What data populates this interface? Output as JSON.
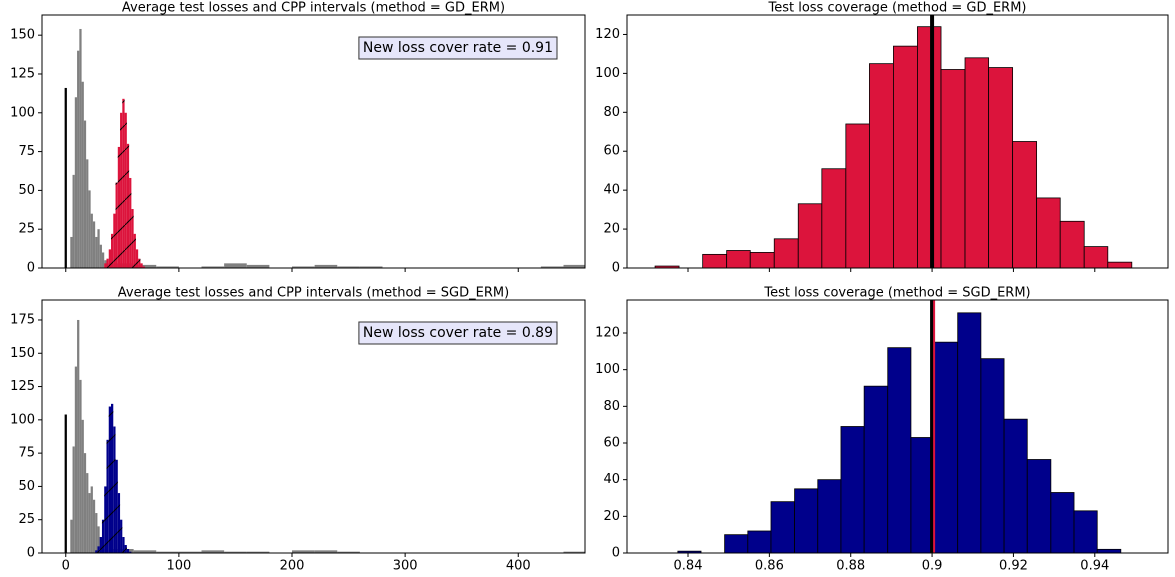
{
  "chart_data": [
    {
      "type": "histogram",
      "title": "Average test losses and CPP intervals (method = GD_ERM)",
      "xlim": [
        -21,
        459
      ],
      "ylim": [
        0,
        163
      ],
      "xticks": [
        0,
        100,
        200,
        300,
        400
      ],
      "yticks": [
        0,
        25,
        50,
        75,
        100,
        125,
        150
      ],
      "show_xtick_labels": false,
      "annotation": "New loss cover rate = 0.91",
      "series": [
        {
          "color": "#000000",
          "bins": [
            -1,
            1
          ],
          "counts": [
            116
          ]
        },
        {
          "color": "#808080",
          "bins": [
            4,
            6,
            8,
            10,
            12,
            14,
            16,
            18,
            20,
            22,
            24,
            26,
            28,
            30,
            32,
            34,
            36,
            38
          ],
          "counts": [
            20,
            60,
            110,
            140,
            154,
            120,
            95,
            70,
            50,
            35,
            30,
            20,
            25,
            15,
            10,
            5,
            3
          ]
        },
        {
          "color": "#808080",
          "bins": [
            40,
            60,
            80,
            100,
            120,
            140,
            160,
            180,
            200,
            220,
            240,
            260,
            280,
            300,
            320,
            340,
            360,
            380,
            400,
            420,
            440,
            460
          ],
          "counts": [
            3,
            2,
            1,
            0,
            1,
            3,
            2,
            0,
            1,
            2,
            1,
            1,
            0,
            0,
            0,
            0,
            0,
            0,
            0,
            1,
            2
          ]
        },
        {
          "color": "#dc143c",
          "hatch": "/",
          "bins": [
            34,
            36,
            38,
            40,
            42,
            44,
            46,
            48,
            50,
            52,
            54,
            56,
            58,
            60,
            62,
            64,
            66,
            68,
            70
          ],
          "counts": [
            3,
            6,
            12,
            22,
            35,
            55,
            78,
            100,
            109,
            100,
            80,
            58,
            38,
            22,
            12,
            6,
            3,
            1
          ]
        }
      ]
    },
    {
      "type": "histogram",
      "title": "Test loss coverage (method = GD_ERM)",
      "xlim": [
        0.825,
        0.958
      ],
      "ylim": [
        0,
        130
      ],
      "xticks": [
        0.84,
        0.86,
        0.88,
        0.9,
        0.92,
        0.94
      ],
      "yticks": [
        0,
        20,
        40,
        60,
        80,
        100,
        120
      ],
      "show_xtick_labels": false,
      "edgecolor": "#000000",
      "series": [
        {
          "color": "#dc143c",
          "bins": [
            0.8319,
            0.8378,
            0.8436,
            0.8495,
            0.8553,
            0.8612,
            0.8671,
            0.8729,
            0.8788,
            0.8846,
            0.8905,
            0.8964,
            0.9022,
            0.9081,
            0.9139,
            0.9198,
            0.9257,
            0.9315,
            0.9374,
            0.9432,
            0.9491
          ],
          "counts": [
            1,
            0,
            7,
            9,
            8,
            15,
            33,
            51,
            74,
            105,
            114,
            124,
            102,
            108,
            103,
            65,
            36,
            24,
            11,
            3
          ]
        }
      ],
      "vlines": [
        {
          "x": 0.9,
          "color": "#000000",
          "width": 4
        }
      ]
    },
    {
      "type": "histogram",
      "title": "Average test losses and CPP intervals (method = SGD_ERM)",
      "xlim": [
        -21,
        459
      ],
      "ylim": [
        0,
        190
      ],
      "xticks": [
        0,
        100,
        200,
        300,
        400
      ],
      "yticks": [
        0,
        25,
        50,
        75,
        100,
        125,
        150,
        175
      ],
      "show_xtick_labels": true,
      "annotation": "New loss cover rate = 0.89",
      "series": [
        {
          "color": "#000000",
          "bins": [
            -1,
            1
          ],
          "counts": [
            104
          ]
        },
        {
          "color": "#808080",
          "bins": [
            4,
            6,
            8,
            10,
            12,
            14,
            16,
            18,
            20,
            22,
            24,
            26,
            28,
            30,
            32,
            34,
            36,
            38
          ],
          "counts": [
            25,
            80,
            140,
            175,
            130,
            100,
            75,
            60,
            45,
            50,
            40,
            30,
            20,
            12,
            6,
            3,
            2
          ]
        },
        {
          "color": "#808080",
          "bins": [
            40,
            60,
            80,
            100,
            120,
            140,
            160,
            180,
            200,
            220,
            240,
            260,
            280,
            300,
            320,
            340,
            360,
            380,
            400,
            420,
            440,
            460
          ],
          "counts": [
            3,
            2,
            1,
            1,
            2,
            1,
            1,
            0,
            2,
            2,
            1,
            0,
            0,
            0,
            0,
            0,
            0,
            0,
            0,
            0,
            1
          ]
        },
        {
          "color": "#00008b",
          "hatch": "/",
          "bins": [
            26,
            28,
            30,
            32,
            34,
            36,
            38,
            40,
            42,
            44,
            46,
            48,
            50,
            52,
            54,
            56,
            58
          ],
          "counts": [
            2,
            5,
            12,
            25,
            50,
            85,
            110,
            112,
            95,
            70,
            45,
            25,
            12,
            6,
            3,
            1
          ]
        }
      ]
    },
    {
      "type": "histogram",
      "title": "Test loss coverage (method = SGD_ERM)",
      "xlim": [
        0.825,
        0.958
      ],
      "ylim": [
        0,
        138
      ],
      "xticks": [
        0.84,
        0.86,
        0.88,
        0.9,
        0.92,
        0.94
      ],
      "yticks": [
        0,
        20,
        40,
        60,
        80,
        100,
        120
      ],
      "show_xtick_labels": true,
      "edgecolor": "#000000",
      "series": [
        {
          "color": "#00008b",
          "bins": [
            0.8375,
            0.8432,
            0.849,
            0.8547,
            0.8604,
            0.8662,
            0.8719,
            0.8776,
            0.8833,
            0.8891,
            0.8948,
            0.9005,
            0.9063,
            0.912,
            0.9177,
            0.9234,
            0.9292,
            0.9349,
            0.9406,
            0.9464
          ],
          "counts": [
            1,
            0,
            10,
            12,
            28,
            35,
            40,
            69,
            91,
            112,
            63,
            115,
            131,
            106,
            73,
            51,
            33,
            23,
            2
          ]
        }
      ],
      "vlines": [
        {
          "x": 0.9,
          "color": "#000000",
          "width": 4
        },
        {
          "x": 0.9005,
          "color": "#dc143c",
          "width": 2
        }
      ]
    }
  ]
}
